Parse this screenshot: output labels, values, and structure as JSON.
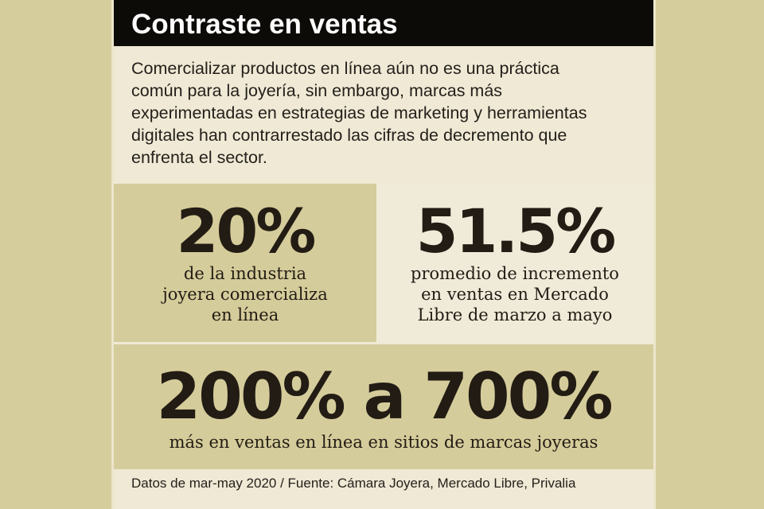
{
  "header": {
    "title": "Contraste en ventas"
  },
  "intro": [
    "Comercializar productos en línea aún no es una práctica",
    "común para la joyería, sin embargo, marcas más",
    "experimentadas en estrategias de marketing y herramientas",
    "digitales han contrarrestado las cifras de decremento que",
    "enfrenta el sector."
  ],
  "stats": [
    {
      "figure": "20%",
      "caption": [
        "de la industria",
        "joyera comercializa",
        "en línea"
      ]
    },
    {
      "figure": "51.5%",
      "caption": [
        "promedio de incremento",
        "en ventas en Mercado",
        "Libre de marzo a mayo"
      ]
    },
    {
      "figure": "200% a 700%",
      "caption": [
        "más en ventas en línea en sitios de marcas joyeras"
      ]
    }
  ],
  "footer": "Datos de mar-may 2020 / Fuente: Cámara Joyera, Mercado Libre, Privalia"
}
